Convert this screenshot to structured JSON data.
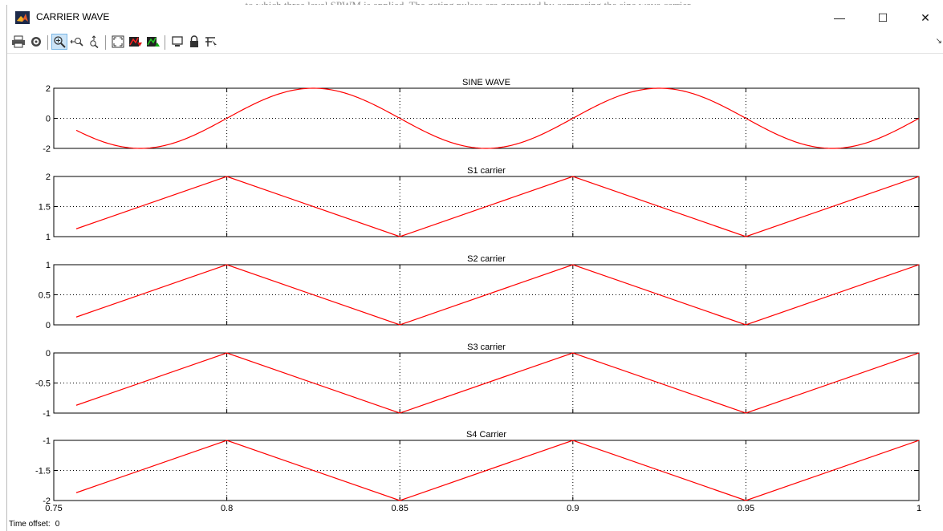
{
  "window": {
    "title": "CARRIER WAVE",
    "controls": {
      "minimize": "—",
      "maximize": "☐",
      "close": "✕"
    }
  },
  "background_caption": "to which three level SPWM is applied. The gating pulses are generated by comparing the sine wave carrier...",
  "toolbar": {
    "buttons": [
      {
        "name": "print-icon",
        "tooltip": "Print"
      },
      {
        "name": "parameters-icon",
        "tooltip": "Parameters"
      },
      {
        "name": "zoom-icon",
        "tooltip": "Zoom",
        "active": true
      },
      {
        "name": "zoom-x-icon",
        "tooltip": "Zoom X-axis"
      },
      {
        "name": "zoom-y-icon",
        "tooltip": "Zoom Y-axis"
      },
      {
        "name": "autoscale-icon",
        "tooltip": "Autoscale"
      },
      {
        "name": "save-axes-icon",
        "tooltip": "Save axes settings"
      },
      {
        "name": "restore-axes-icon",
        "tooltip": "Restore saved axes"
      },
      {
        "name": "floating-scope-icon",
        "tooltip": "Floating scope"
      },
      {
        "name": "lock-icon",
        "tooltip": "Lock axes"
      },
      {
        "name": "signal-selection-icon",
        "tooltip": "Signal selection"
      }
    ]
  },
  "status": {
    "label": "Time offset:",
    "value": "0"
  },
  "colors": {
    "trace": "#ff0000",
    "axes": "#000000",
    "grid": "#000000",
    "background": "#ffffff"
  },
  "chart_data": [
    {
      "type": "line",
      "title": "SINE WAVE",
      "xlim": [
        0.75,
        1
      ],
      "ylim": [
        -2,
        2
      ],
      "yticks": [
        2,
        0,
        -2
      ],
      "ytick_labels": [
        "2",
        "0",
        "-2"
      ],
      "grid": true,
      "series": [
        {
          "kind": "sine",
          "amplitude": 2,
          "frequency_hz": 10,
          "phase_ref_x": 0.8
        }
      ]
    },
    {
      "type": "line",
      "title": "S1 carrier",
      "xlim": [
        0.75,
        1
      ],
      "ylim": [
        1,
        2
      ],
      "yticks": [
        2,
        1.5,
        1
      ],
      "ytick_labels": [
        "2",
        "1.5",
        "1"
      ],
      "grid": true,
      "series": [
        {
          "x": [
            0.7565,
            0.8,
            0.85,
            0.9,
            0.95,
            1.0
          ],
          "y": [
            1.13,
            2,
            1,
            2,
            1,
            2
          ]
        }
      ]
    },
    {
      "type": "line",
      "title": "S2 carrier",
      "xlim": [
        0.75,
        1
      ],
      "ylim": [
        0,
        1
      ],
      "yticks": [
        1,
        0.5,
        0
      ],
      "ytick_labels": [
        "1",
        "0.5",
        "0"
      ],
      "grid": true,
      "series": [
        {
          "x": [
            0.7565,
            0.8,
            0.85,
            0.9,
            0.95,
            1.0
          ],
          "y": [
            0.13,
            1,
            0,
            1,
            0,
            1
          ]
        }
      ]
    },
    {
      "type": "line",
      "title": "S3 carrier",
      "xlim": [
        0.75,
        1
      ],
      "ylim": [
        -1,
        0
      ],
      "yticks": [
        0,
        -0.5,
        -1
      ],
      "ytick_labels": [
        "0",
        "-0.5",
        "-1"
      ],
      "grid": true,
      "series": [
        {
          "x": [
            0.7565,
            0.8,
            0.85,
            0.9,
            0.95,
            1.0
          ],
          "y": [
            -0.87,
            0,
            -1,
            0,
            -1,
            0
          ]
        }
      ]
    },
    {
      "type": "line",
      "title": "S4 Carrier",
      "xlim": [
        0.75,
        1
      ],
      "ylim": [
        -2,
        -1
      ],
      "yticks": [
        -1,
        -1.5,
        -2
      ],
      "ytick_labels": [
        "-1",
        "-1.5",
        "-2"
      ],
      "xticks": [
        0.75,
        0.8,
        0.85,
        0.9,
        0.95,
        1
      ],
      "xtick_labels": [
        "0.75",
        "0.8",
        "0.85",
        "0.9",
        "0.95",
        "1"
      ],
      "grid": true,
      "series": [
        {
          "x": [
            0.7565,
            0.8,
            0.85,
            0.9,
            0.95,
            1.0
          ],
          "y": [
            -1.87,
            -1,
            -2,
            -1,
            -2,
            -1
          ]
        }
      ]
    }
  ]
}
